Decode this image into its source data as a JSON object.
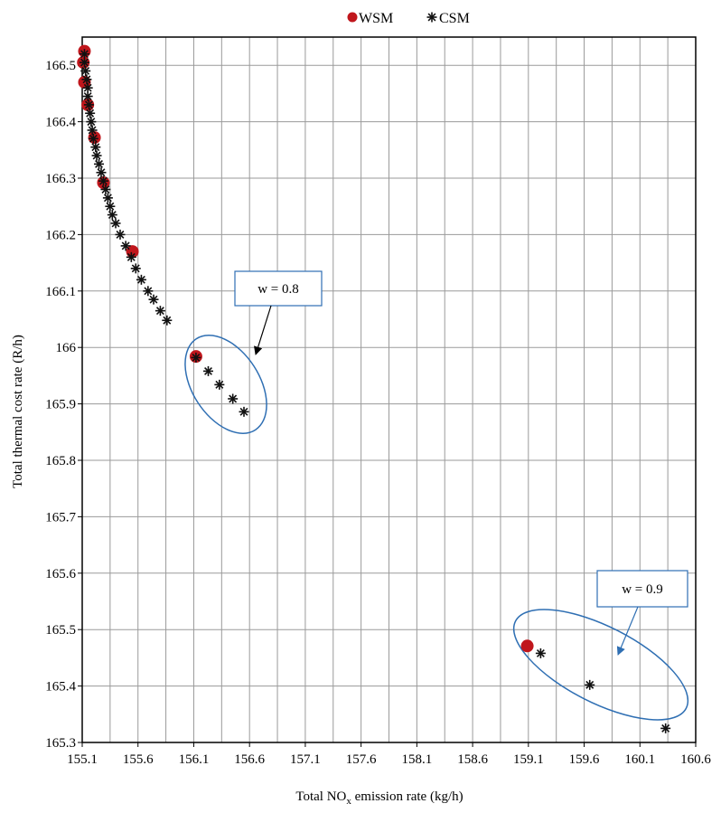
{
  "chart_data": {
    "type": "scatter",
    "xlabel": "Total NO",
    "xlabel_sub": "x",
    "xlabel_suffix": " emission rate (kg/h)",
    "ylabel": "Total thermal cost rate (R/h)",
    "xlim": [
      155.1,
      160.6
    ],
    "ylim": [
      165.3,
      166.55
    ],
    "x_ticks": [
      155.1,
      155.6,
      156.1,
      156.6,
      157.1,
      157.6,
      158.1,
      158.6,
      159.1,
      159.6,
      160.1,
      160.6
    ],
    "x_tick_labels": [
      "155.1",
      "155.6",
      "156.1",
      "156.6",
      "157.1",
      "157.6",
      "158.1",
      "158.6",
      "159.1",
      "159.6",
      "160.1",
      "160.6"
    ],
    "x_minor_ticks": [
      155.35,
      155.85,
      156.35,
      156.85,
      157.35,
      157.85,
      158.35,
      158.85,
      159.35,
      159.85,
      160.35
    ],
    "y_ticks": [
      165.3,
      165.4,
      165.5,
      165.6,
      165.7,
      165.8,
      165.9,
      166.0,
      166.1,
      166.2,
      166.3,
      166.4,
      166.5
    ],
    "y_tick_labels": [
      "165.3",
      "165.4",
      "165.5",
      "165.6",
      "165.7",
      "165.8",
      "165.9",
      "166",
      "166.1",
      "166.2",
      "166.3",
      "166.4",
      "166.5"
    ],
    "grid": true,
    "legend_position": "top-center",
    "series": [
      {
        "name": "WSM",
        "marker": "circle",
        "color": "#c0161c",
        "points": [
          [
            155.12,
            166.525
          ],
          [
            155.11,
            166.505
          ],
          [
            155.12,
            166.47
          ],
          [
            155.15,
            166.43
          ],
          [
            155.21,
            166.372
          ],
          [
            155.29,
            166.292
          ],
          [
            155.55,
            166.17
          ],
          [
            156.12,
            165.984
          ],
          [
            159.09,
            165.471
          ]
        ]
      },
      {
        "name": "CSM",
        "marker": "asterisk",
        "color": "#111111",
        "points": [
          [
            155.12,
            166.52
          ],
          [
            155.12,
            166.505
          ],
          [
            155.13,
            166.49
          ],
          [
            155.14,
            166.475
          ],
          [
            155.15,
            166.46
          ],
          [
            155.15,
            166.445
          ],
          [
            155.16,
            166.43
          ],
          [
            155.17,
            166.415
          ],
          [
            155.18,
            166.4
          ],
          [
            155.19,
            166.385
          ],
          [
            155.2,
            166.37
          ],
          [
            155.22,
            166.355
          ],
          [
            155.23,
            166.34
          ],
          [
            155.25,
            166.325
          ],
          [
            155.27,
            166.31
          ],
          [
            155.29,
            166.295
          ],
          [
            155.31,
            166.28
          ],
          [
            155.33,
            166.265
          ],
          [
            155.35,
            166.25
          ],
          [
            155.37,
            166.235
          ],
          [
            155.4,
            166.22
          ],
          [
            155.44,
            166.2
          ],
          [
            155.49,
            166.18
          ],
          [
            155.54,
            166.16
          ],
          [
            155.58,
            166.14
          ],
          [
            155.63,
            166.12
          ],
          [
            155.69,
            166.1
          ],
          [
            155.74,
            166.085
          ],
          [
            155.8,
            166.065
          ],
          [
            155.86,
            166.048
          ],
          [
            156.12,
            165.982
          ],
          [
            156.23,
            165.958
          ],
          [
            156.33,
            165.934
          ],
          [
            156.45,
            165.909
          ],
          [
            156.55,
            165.886
          ],
          [
            159.21,
            165.458
          ],
          [
            159.65,
            165.402
          ],
          [
            160.33,
            165.325
          ]
        ]
      }
    ],
    "annotations": [
      {
        "text": "w = 0.8",
        "target_x": 156.35,
        "target_y": 165.94
      },
      {
        "text": "w = 0.9",
        "target_x": 159.7,
        "target_y": 165.4
      }
    ]
  }
}
